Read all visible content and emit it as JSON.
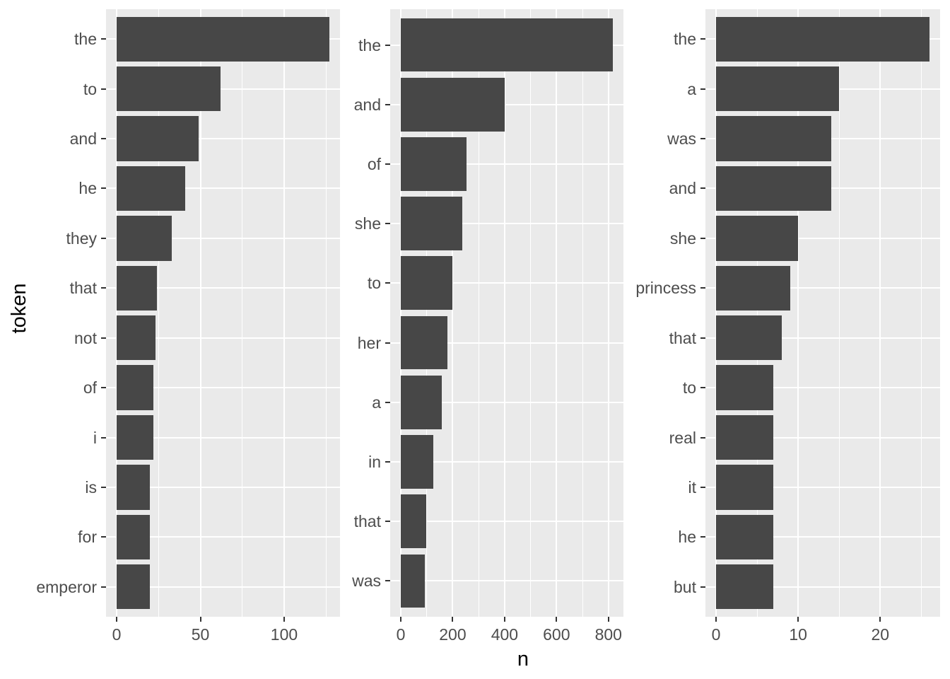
{
  "figure": {
    "xlabel": "n",
    "ylabel": "token",
    "colors": {
      "bar": "#474747",
      "panel_background": "#EAEAEA",
      "gridline": "#FFFFFF",
      "tick_label": "#4D4D4D",
      "tick_mark": "#333333",
      "axis_title": "#000000",
      "page_background": "#FFFFFF"
    }
  },
  "chart_data": [
    {
      "type": "bar",
      "orientation": "horizontal",
      "grid": true,
      "legend": false,
      "categories": [
        "the",
        "to",
        "and",
        "he",
        "they",
        "that",
        "not",
        "of",
        "i",
        "is",
        "for",
        "emperor"
      ],
      "values": [
        127,
        62,
        49,
        41,
        33,
        24,
        23,
        22,
        22,
        20,
        20,
        20
      ],
      "x_major_ticks": [
        0,
        50,
        100
      ],
      "x_minor_ticks": [
        25,
        75,
        125
      ],
      "xlim": [
        0,
        133.4
      ],
      "xlabel": "n",
      "ylabel": "token"
    },
    {
      "type": "bar",
      "orientation": "horizontal",
      "grid": true,
      "legend": false,
      "categories": [
        "the",
        "and",
        "of",
        "she",
        "to",
        "her",
        "a",
        "in",
        "that",
        "was"
      ],
      "values": [
        817,
        400,
        252,
        238,
        198,
        179,
        157,
        124,
        97,
        92
      ],
      "x_major_ticks": [
        0,
        200,
        400,
        600,
        800
      ],
      "x_minor_ticks": [
        100,
        300,
        500,
        700
      ],
      "xlim": [
        0,
        857.9
      ],
      "xlabel": "n",
      "ylabel": "token"
    },
    {
      "type": "bar",
      "orientation": "horizontal",
      "grid": true,
      "legend": false,
      "categories": [
        "the",
        "a",
        "was",
        "and",
        "she",
        "princess",
        "that",
        "to",
        "real",
        "it",
        "he",
        "but"
      ],
      "values": [
        26,
        15,
        14,
        14,
        10,
        9,
        8,
        7,
        7,
        7,
        7,
        7
      ],
      "x_major_ticks": [
        0,
        10,
        20
      ],
      "x_minor_ticks": [
        5,
        15,
        25
      ],
      "xlim": [
        0,
        27.3
      ],
      "xlabel": "n",
      "ylabel": "token"
    }
  ]
}
